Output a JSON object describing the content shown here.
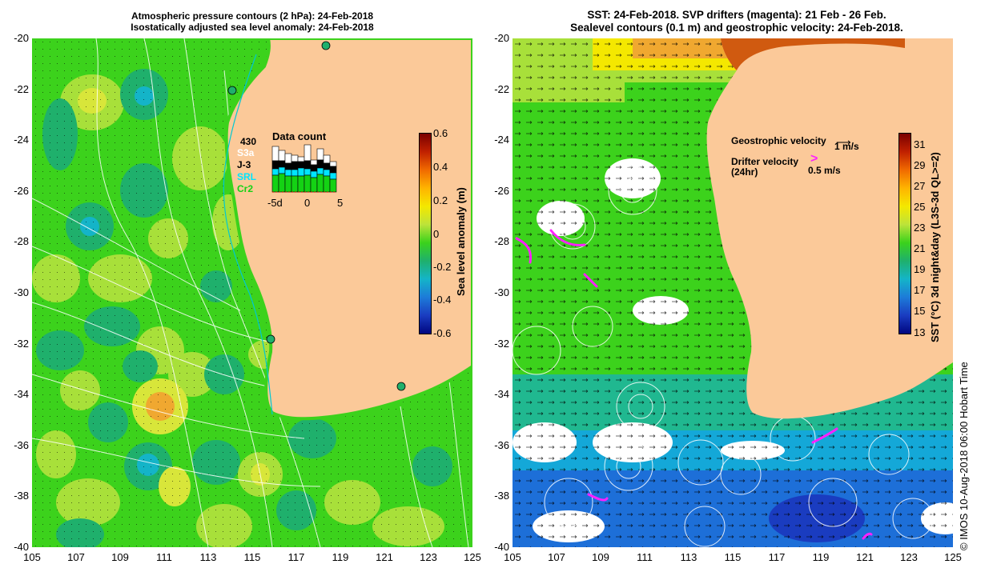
{
  "left_panel": {
    "title_line1": "Atmospheric pressure contours (2 hPa): 24-Feb-2018",
    "title_line2": "Isostatically adjusted sea level anomaly: 24-Feb-2018",
    "colorbar_label": "Sea level anomaly (m)",
    "colorbar_ticks": [
      "0.6",
      "0.4",
      "0.2",
      "0",
      "-0.2",
      "-0.4",
      "-0.6"
    ],
    "data_count": {
      "title": "Data count",
      "total": "430",
      "legend": [
        {
          "label": "S3a",
          "color": "#ffffff"
        },
        {
          "label": "J-3",
          "color": "#000000"
        },
        {
          "label": "SRL",
          "color": "#00e5ff"
        },
        {
          "label": "Cr2",
          "color": "#14d214"
        }
      ],
      "axis_ticks": [
        "-5d",
        "0",
        "5"
      ]
    }
  },
  "right_panel": {
    "title_line1": "SST: 24-Feb-2018. SVP drifters (magenta): 21 Feb - 26 Feb.",
    "title_line2": "Sealevel contours (0.1 m) and geostrophic velocity: 24-Feb-2018.",
    "colorbar_label": "SST (°C) 3d night&day (L3S-3d QL>=2)",
    "colorbar_ticks": [
      "31",
      "29",
      "27",
      "25",
      "23",
      "21",
      "19",
      "17",
      "15",
      "13"
    ],
    "legend": {
      "geo_label": "Geostrophic velocity",
      "geo_value": "1 m/s",
      "drifter_label": "Drifter velocity",
      "drifter_label2": "(24hr)",
      "drifter_value": "0.5 m/s"
    }
  },
  "axes": {
    "y_ticks": [
      "-20",
      "-22",
      "-24",
      "-26",
      "-28",
      "-30",
      "-32",
      "-34",
      "-36",
      "-38",
      "-40"
    ],
    "x_ticks": [
      "105",
      "107",
      "109",
      "111",
      "113",
      "115",
      "117",
      "119",
      "121",
      "123",
      "125"
    ]
  },
  "credit": "© IMOS 10-Aug-2018 06:00 Hobart Time",
  "colors": {
    "land": "#fbc999",
    "sea_green": "#3cd21c",
    "coast": "#00c8d2"
  }
}
